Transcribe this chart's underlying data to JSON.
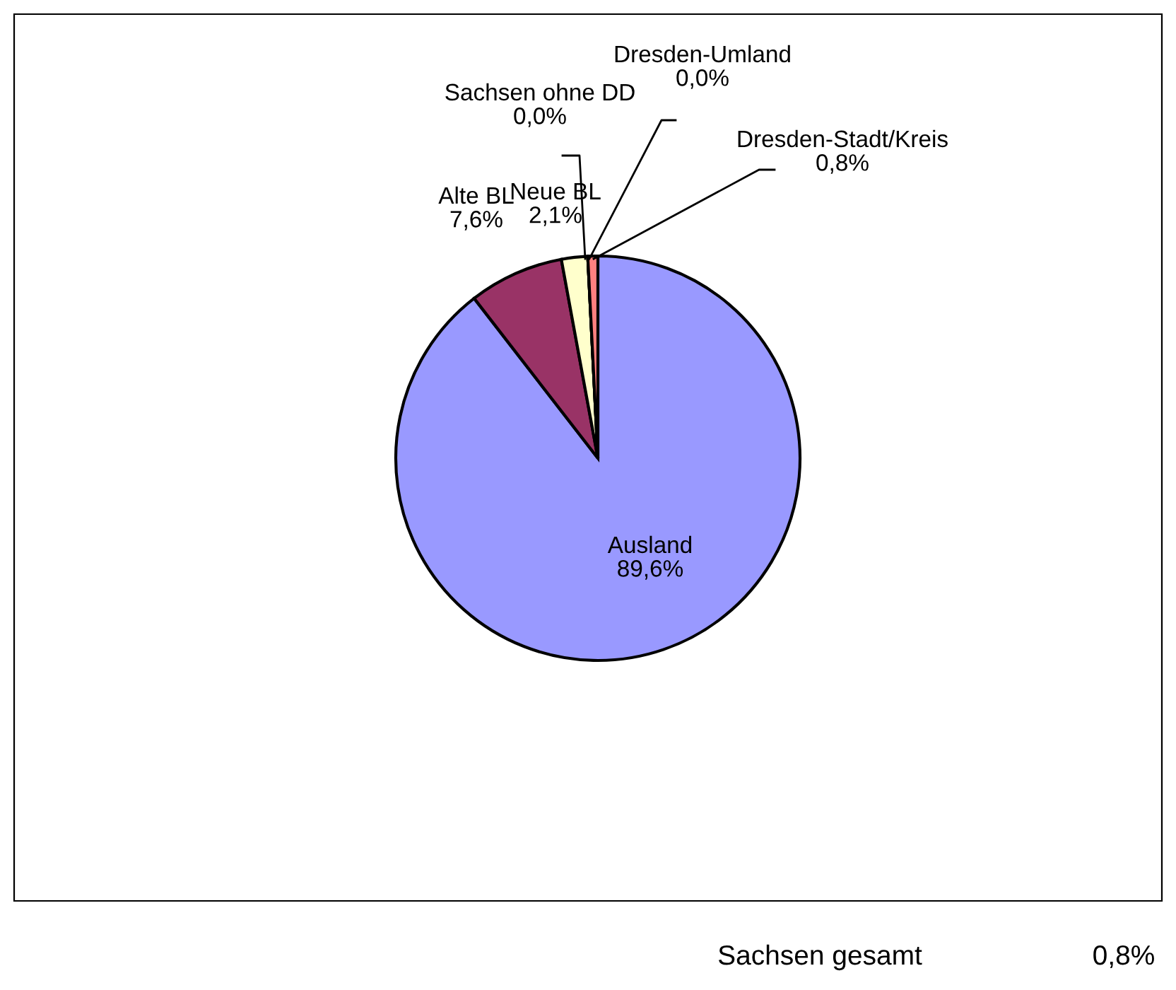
{
  "chart_data": {
    "type": "pie",
    "categories": [
      "Ausland",
      "Alte BL",
      "Neue BL",
      "Sachsen ohne DD",
      "Dresden-Umland",
      "Dresden-Stadt/Kreis"
    ],
    "values": [
      89.6,
      7.6,
      2.1,
      0.0,
      0.0,
      0.8
    ],
    "value_labels": [
      "89,6%",
      "7,6%",
      "2,1%",
      "0,0%",
      "0,0%",
      "0,8%"
    ],
    "colors": [
      "#9999ff",
      "#993366",
      "#ffffcc",
      "#ccffff",
      "#660066",
      "#ff8080"
    ],
    "legend": false,
    "annotations": [
      "Sachsen gesamt",
      "0,8%"
    ]
  }
}
